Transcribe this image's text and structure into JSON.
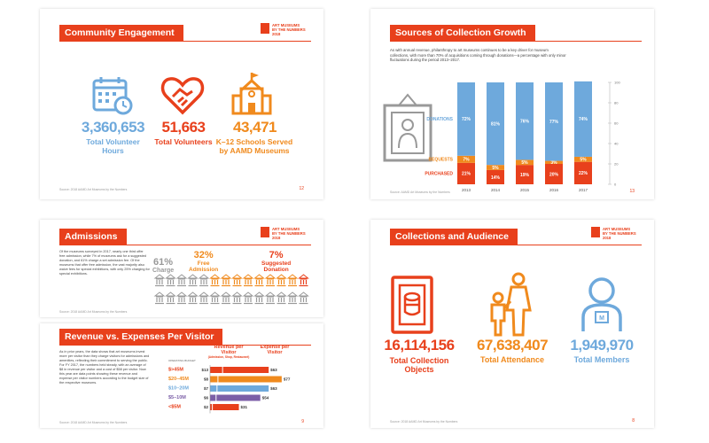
{
  "panel_community": {
    "title": "Community Engagement",
    "page": "12",
    "source": "Source: 2018 AAMD Art Museums by the Numbers",
    "stats": [
      {
        "value": "3,360,653",
        "label_1": "Total Volunteer",
        "label_2": "Hours",
        "icon": "calendar-clock-icon"
      },
      {
        "value": "51,663",
        "label_1": "Total Volunteers",
        "label_2": "",
        "icon": "heart-handshake-icon"
      },
      {
        "value": "43,471",
        "label_1": "K–12 Schools Served",
        "label_2": "by AAMD Museums",
        "icon": "school-icon"
      }
    ]
  },
  "panel_sources": {
    "title": "Sources of Collection Growth",
    "intro": "As with annual revenue, philanthropy to art museums continues to be a key driver for museum collections, with more than 70% of acquisitions coming through donations—a percentage with only minor fluctuations during the period 2013–2017.",
    "page": "13",
    "source": "Source: AAMD Art Museums by the Numbers"
  },
  "chart_data": {
    "type": "bar",
    "stacked": true,
    "categories": [
      "2013",
      "2014",
      "2015",
      "2016",
      "2017"
    ],
    "series": [
      {
        "name": "PURCHASED",
        "values": [
          21,
          14,
          19,
          20,
          22
        ],
        "color": "#e8401c"
      },
      {
        "name": "BEQUESTS",
        "values": [
          7,
          5,
          5,
          3,
          5
        ],
        "color": "#f08a1d"
      },
      {
        "name": "DONATIONS",
        "values": [
          72,
          81,
          76,
          77,
          74
        ],
        "color": "#6ea9dc"
      }
    ],
    "ylim": [
      0,
      100
    ],
    "yticks": [
      "0",
      "20",
      "40",
      "60",
      "80",
      "100"
    ],
    "legend_placement": "left"
  },
  "panel_admissions": {
    "title": "Admissions",
    "body": "Of the museums surveyed in 2017, nearly one third offer free admission, while 7% of museums ask for a suggested donation, and 61% charge a set admission fee. Of the museums that offer free admission, the vast majority also waive fees for special exhibitions, with only 25% charging for special exhibitions.",
    "stats": [
      {
        "value": "61%",
        "label": "Charge",
        "color": "#999999"
      },
      {
        "value": "32%",
        "label_1": "Free",
        "label_2": "Admission",
        "color": "#f08a1d"
      },
      {
        "value": "7%",
        "label_1": "Suggested",
        "label_2": "Donation",
        "color": "#e8401c"
      }
    ],
    "source": "Source: 2018 AAMD Art Museums by the Numbers"
  },
  "panel_revenue": {
    "title": "Revenue vs. Expenses Per Visitor",
    "body": "As in prior years, the data shows that art museums invest more per visitor than they charge visitors for admissions and amenities, reflecting their commitment to serving the public. For FY 2017, the numbers held steady, with an average of $8 in revenue per visitor and a cost of $58 per visitor. Now this year are data points showing these revenue and expense per visitor numbers according to the budget size of the respective museums.",
    "col_revenue": "Revenue per Visitor",
    "col_revenue_sub": "(Admission, Shop, Restaurant)",
    "col_expense": "Expense per Visitor",
    "operating_budget": "OPERATING BUDGET",
    "rows": [
      {
        "budget": "$>45M",
        "revenue": "$13",
        "expense": "$63",
        "rev": 13,
        "exp": 63,
        "color": "#e8401c"
      },
      {
        "budget": "$20–45M",
        "revenue": "$8",
        "expense": "$77",
        "rev": 8,
        "exp": 77,
        "color": "#f08a1d"
      },
      {
        "budget": "$10–20M",
        "revenue": "$7",
        "expense": "$63",
        "rev": 7,
        "exp": 63,
        "color": "#6ea9dc"
      },
      {
        "budget": "$5–10M",
        "revenue": "$6",
        "expense": "$54",
        "rev": 6,
        "exp": 54,
        "color": "#7b5ea7"
      },
      {
        "budget": "<$5M",
        "revenue": "$2",
        "expense": "$31",
        "rev": 2,
        "exp": 31,
        "color": "#e8401c"
      }
    ],
    "page": "9",
    "source": "Source: 2018 AAMD Art Museums by the Numbers"
  },
  "panel_collections": {
    "title": "Collections and Audience",
    "page": "8",
    "source": "Source: 2018 AAMD Art Museums by the Numbers",
    "stats": [
      {
        "value": "16,114,156",
        "label_1": "Total Collection",
        "label_2": "Objects",
        "icon": "object-icon"
      },
      {
        "value": "67,638,407",
        "label_1": "Total Attendance",
        "label_2": "",
        "icon": "family-icon"
      },
      {
        "value": "1,949,970",
        "label_1": "Total Members",
        "label_2": "",
        "icon": "member-icon"
      }
    ]
  },
  "logo": {
    "text_1": "ART MUSEUMS",
    "text_2": "BY THE NUMBERS",
    "text_3": "2018"
  }
}
